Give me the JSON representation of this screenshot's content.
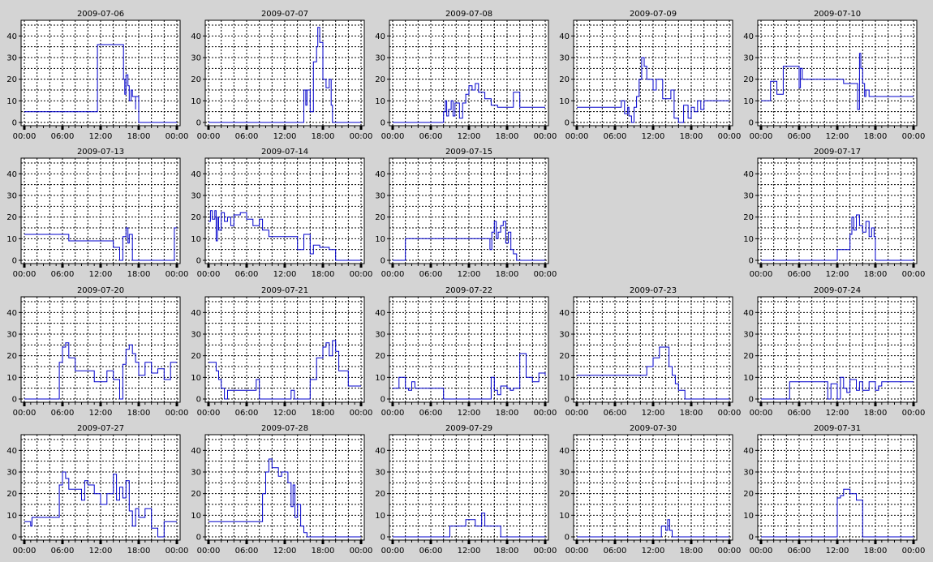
{
  "chart_data": [
    {
      "type": "line",
      "title": "2009-07-06",
      "ylim": [
        0,
        45
      ],
      "yticks": [
        0,
        10,
        20,
        30,
        40
      ],
      "xticks": [
        "00:00",
        "06:00",
        "12:00",
        "18:00",
        "00:00"
      ],
      "x": [
        0,
        11.5,
        11.5,
        15.5,
        15.6,
        15.8,
        16,
        16.3,
        16.5,
        16.8,
        17,
        17.5,
        17.5,
        18,
        24
      ],
      "values": [
        5,
        5,
        36,
        36,
        20,
        13,
        22,
        17,
        10,
        15,
        12,
        6,
        12,
        0,
        0
      ]
    },
    {
      "type": "line",
      "title": "2009-07-07",
      "ylim": [
        0,
        45
      ],
      "yticks": [
        0,
        10,
        20,
        30,
        40
      ],
      "xticks": [
        "00:00",
        "06:00",
        "12:00",
        "18:00",
        "00:00"
      ],
      "x": [
        0,
        14.8,
        15,
        15.3,
        15.5,
        16,
        16.5,
        17,
        17.2,
        17.5,
        18,
        18.5,
        19,
        19.3,
        19.5,
        24
      ],
      "values": [
        0,
        0,
        15,
        8,
        15,
        5,
        28,
        35,
        44,
        37,
        20,
        16,
        20,
        8,
        0,
        0
      ]
    },
    {
      "type": "line",
      "title": "2009-07-08",
      "ylim": [
        0,
        45
      ],
      "yticks": [
        0,
        10,
        20,
        30,
        40
      ],
      "xticks": [
        "00:00",
        "06:00",
        "12:00",
        "18:00",
        "00:00"
      ],
      "x": [
        0,
        7.8,
        8,
        8.3,
        8.5,
        8.8,
        9.2,
        9.5,
        9.8,
        10.5,
        11,
        11.5,
        12,
        12.5,
        13,
        13.5,
        14.5,
        15.5,
        16.5,
        18.5,
        19,
        20,
        24
      ],
      "values": [
        0,
        0,
        5,
        10,
        3,
        6,
        10,
        3,
        9,
        2,
        9,
        13,
        17,
        15,
        18,
        14,
        11,
        8,
        7,
        7,
        14,
        7,
        7
      ]
    },
    {
      "type": "line",
      "title": "2009-07-09",
      "ylim": [
        0,
        45
      ],
      "yticks": [
        0,
        10,
        20,
        30,
        40
      ],
      "xticks": [
        "00:00",
        "06:00",
        "12:00",
        "18:00",
        "00:00"
      ],
      "x": [
        0,
        6.5,
        7,
        7.5,
        8,
        8.2,
        8.6,
        9,
        9.4,
        9.8,
        10.2,
        10.6,
        11,
        12,
        12.5,
        13.5,
        14.8,
        15.3,
        16,
        16.8,
        17.5,
        18,
        18.5,
        19,
        19.5,
        20,
        24
      ],
      "values": [
        7,
        7,
        10,
        4,
        7,
        3,
        0,
        7,
        12,
        20,
        30,
        26,
        20,
        15,
        20,
        11,
        15,
        2,
        0,
        8,
        2,
        7,
        5,
        10,
        6,
        10,
        10
      ]
    },
    {
      "type": "line",
      "title": "2009-07-10",
      "ylim": [
        0,
        45
      ],
      "yticks": [
        0,
        10,
        20,
        30,
        40
      ],
      "xticks": [
        "00:00",
        "06:00",
        "12:00",
        "18:00",
        "00:00"
      ],
      "x": [
        0,
        1,
        1.5,
        2.5,
        3.5,
        6,
        6.2,
        6.5,
        7,
        13,
        15,
        15.2,
        15.5,
        15.7,
        16,
        16.3,
        16.5,
        17,
        24
      ],
      "values": [
        10,
        10,
        19,
        13,
        26,
        16,
        25,
        20,
        20,
        18,
        18,
        6,
        32,
        25,
        18,
        12,
        15,
        12,
        12
      ]
    },
    {
      "type": "line",
      "title": "2009-07-13",
      "ylim": [
        0,
        45
      ],
      "yticks": [
        0,
        10,
        20,
        30,
        40
      ],
      "xticks": [
        "00:00",
        "06:00",
        "12:00",
        "18:00",
        "00:00"
      ],
      "x": [
        0,
        6.5,
        7,
        12.5,
        14,
        15,
        15.5,
        16,
        16.3,
        16.5,
        17,
        23.5,
        23.6,
        24
      ],
      "values": [
        12,
        12,
        9,
        9,
        6,
        0,
        11,
        15,
        8,
        12,
        0,
        0,
        15,
        15
      ]
    },
    {
      "type": "line",
      "title": "2009-07-14",
      "ylim": [
        0,
        45
      ],
      "yticks": [
        0,
        10,
        20,
        30,
        40
      ],
      "xticks": [
        "00:00",
        "06:00",
        "12:00",
        "18:00",
        "00:00"
      ],
      "x": [
        0,
        0.3,
        0.6,
        1,
        1.2,
        1.4,
        1.6,
        2,
        2.5,
        3,
        3.5,
        4,
        5,
        6,
        7,
        8,
        8.5,
        9.5,
        10,
        13,
        14,
        15,
        16,
        16.5,
        17.5,
        19,
        20,
        24
      ],
      "values": [
        18,
        23,
        19,
        23,
        9,
        20,
        14,
        22,
        18,
        20,
        16,
        21,
        22,
        19,
        16,
        19,
        14,
        11,
        11,
        11,
        5,
        12,
        3,
        7,
        6,
        5,
        0,
        0
      ]
    },
    {
      "type": "line",
      "title": "2009-07-15",
      "ylim": [
        0,
        45
      ],
      "yticks": [
        0,
        10,
        20,
        30,
        40
      ],
      "xticks": [
        "00:00",
        "06:00",
        "12:00",
        "18:00",
        "00:00"
      ],
      "x": [
        0,
        1.5,
        2,
        15,
        15.3,
        15.6,
        16,
        16.3,
        16.6,
        17,
        17.4,
        17.8,
        18.2,
        18.6,
        19,
        19.5,
        24
      ],
      "values": [
        0,
        0,
        10,
        10,
        5,
        13,
        18,
        10,
        13,
        16,
        18,
        8,
        13,
        5,
        3,
        0,
        0
      ]
    },
    null,
    {
      "type": "line",
      "title": "2009-07-17",
      "ylim": [
        0,
        45
      ],
      "yticks": [
        0,
        10,
        20,
        30,
        40
      ],
      "xticks": [
        "00:00",
        "06:00",
        "12:00",
        "18:00",
        "00:00"
      ],
      "x": [
        0,
        12,
        14,
        14.3,
        14.6,
        15,
        15.5,
        16,
        16.5,
        17,
        17.4,
        17.8,
        18,
        24
      ],
      "values": [
        0,
        5,
        12,
        20,
        14,
        21,
        16,
        13,
        18,
        11,
        15,
        11,
        0,
        0
      ]
    },
    {
      "type": "line",
      "title": "2009-07-20",
      "ylim": [
        0,
        45
      ],
      "yticks": [
        0,
        10,
        20,
        30,
        40
      ],
      "xticks": [
        "00:00",
        "06:00",
        "12:00",
        "18:00",
        "00:00"
      ],
      "x": [
        0,
        5,
        5.5,
        6,
        6.5,
        7,
        8,
        9,
        10,
        11,
        12,
        13,
        14,
        15,
        15.5,
        16,
        16.5,
        17,
        17.5,
        18,
        19,
        20,
        21,
        22,
        23,
        24
      ],
      "values": [
        0,
        0,
        17,
        24,
        26,
        19,
        13,
        13,
        13,
        8,
        8,
        13,
        9,
        0,
        16,
        23,
        25,
        21,
        17,
        11,
        17,
        12,
        14,
        9,
        17,
        17
      ]
    },
    {
      "type": "line",
      "title": "2009-07-21",
      "ylim": [
        0,
        45
      ],
      "yticks": [
        0,
        10,
        20,
        30,
        40
      ],
      "xticks": [
        "00:00",
        "06:00",
        "12:00",
        "18:00",
        "00:00"
      ],
      "x": [
        0,
        1.2,
        1.6,
        2,
        2.5,
        3,
        4,
        5,
        7,
        7.5,
        8,
        10,
        13,
        13.5,
        14,
        16,
        17,
        18,
        18.5,
        19,
        19.5,
        20,
        20.5,
        21,
        22,
        23,
        24
      ],
      "values": [
        17,
        13,
        9,
        5,
        0,
        4,
        4,
        4,
        4,
        9,
        0,
        0,
        4,
        0,
        0,
        9,
        19,
        24,
        26,
        20,
        27,
        22,
        13,
        13,
        6,
        6,
        6
      ]
    },
    {
      "type": "line",
      "title": "2009-07-22",
      "ylim": [
        0,
        45
      ],
      "yticks": [
        0,
        10,
        20,
        30,
        40
      ],
      "xticks": [
        "00:00",
        "06:00",
        "12:00",
        "18:00",
        "00:00"
      ],
      "x": [
        0,
        1,
        2,
        2.5,
        3,
        3.5,
        5,
        7,
        8,
        9,
        15,
        15.5,
        16,
        16.5,
        17,
        18,
        18.5,
        19,
        20,
        21,
        22,
        23,
        24
      ],
      "values": [
        5,
        10,
        5,
        4,
        8,
        5,
        5,
        5,
        0,
        0,
        0,
        10,
        4,
        2,
        6,
        5,
        4,
        5,
        21,
        10,
        8,
        12,
        11
      ]
    },
    {
      "type": "line",
      "title": "2009-07-23",
      "ylim": [
        0,
        45
      ],
      "yticks": [
        0,
        10,
        20,
        30,
        40
      ],
      "xticks": [
        "00:00",
        "06:00",
        "12:00",
        "18:00",
        "00:00"
      ],
      "x": [
        0,
        9.5,
        10,
        11,
        12,
        13,
        14,
        14.5,
        15,
        15.5,
        16,
        17,
        24
      ],
      "values": [
        11,
        11,
        11,
        15,
        19,
        24,
        24,
        15,
        11,
        7,
        4,
        0,
        0
      ]
    },
    {
      "type": "line",
      "title": "2009-07-24",
      "ylim": [
        0,
        45
      ],
      "yticks": [
        0,
        10,
        20,
        30,
        40
      ],
      "xticks": [
        "00:00",
        "06:00",
        "12:00",
        "18:00",
        "00:00"
      ],
      "x": [
        0,
        4,
        4.5,
        10,
        10.5,
        11,
        12,
        12.5,
        13,
        13.5,
        14,
        15,
        15.5,
        16,
        17,
        18,
        18.5,
        19,
        24
      ],
      "values": [
        0,
        0,
        8,
        8,
        0,
        7,
        0,
        10,
        5,
        3,
        9,
        4,
        8,
        4,
        8,
        4,
        6,
        8,
        8
      ]
    },
    {
      "type": "line",
      "title": "2009-07-27",
      "ylim": [
        0,
        45
      ],
      "yticks": [
        0,
        10,
        20,
        30,
        40
      ],
      "xticks": [
        "00:00",
        "06:00",
        "12:00",
        "18:00",
        "00:00"
      ],
      "x": [
        0,
        1,
        1.2,
        5,
        5.5,
        6,
        6.5,
        7,
        8,
        9,
        9.5,
        10,
        11,
        12,
        13,
        14,
        14.5,
        15,
        15.5,
        16,
        16.5,
        17,
        17.5,
        18,
        19,
        20,
        21,
        22,
        24
      ],
      "values": [
        7,
        5,
        9,
        9,
        24,
        30,
        27,
        22,
        22,
        17,
        26,
        24,
        20,
        15,
        20,
        29,
        17,
        23,
        18,
        26,
        12,
        5,
        13,
        9,
        13,
        4,
        0,
        7,
        7
      ]
    },
    {
      "type": "line",
      "title": "2009-07-28",
      "ylim": [
        0,
        45
      ],
      "yticks": [
        0,
        10,
        20,
        30,
        40
      ],
      "xticks": [
        "00:00",
        "06:00",
        "12:00",
        "18:00",
        "00:00"
      ],
      "x": [
        0,
        8,
        8.5,
        9,
        9.5,
        10,
        11,
        11.5,
        12,
        12.5,
        13,
        13.3,
        13.6,
        14,
        14.5,
        15,
        15.5,
        24
      ],
      "values": [
        7,
        7,
        20,
        30,
        36,
        32,
        28,
        30,
        30,
        25,
        14,
        24,
        9,
        15,
        5,
        2,
        0,
        0
      ]
    },
    {
      "type": "line",
      "title": "2009-07-29",
      "ylim": [
        0,
        45
      ],
      "yticks": [
        0,
        10,
        20,
        30,
        40
      ],
      "xticks": [
        "00:00",
        "06:00",
        "12:00",
        "18:00",
        "00:00"
      ],
      "x": [
        0,
        8.5,
        9,
        10,
        11,
        11.5,
        12,
        13,
        14,
        14.5,
        15,
        16,
        17,
        24
      ],
      "values": [
        0,
        0,
        5,
        5,
        5,
        8,
        8,
        5,
        11,
        5,
        5,
        5,
        0,
        0
      ]
    },
    {
      "type": "line",
      "title": "2009-07-30",
      "ylim": [
        0,
        45
      ],
      "yticks": [
        0,
        10,
        20,
        30,
        40
      ],
      "xticks": [
        "00:00",
        "06:00",
        "12:00",
        "18:00",
        "00:00"
      ],
      "x": [
        0,
        13,
        13.3,
        13.7,
        14,
        14.3,
        14.6,
        15,
        24
      ],
      "values": [
        0,
        0,
        5,
        5,
        3,
        8,
        3,
        0,
        0
      ]
    },
    {
      "type": "line",
      "title": "2009-07-31",
      "ylim": [
        0,
        45
      ],
      "yticks": [
        0,
        10,
        20,
        30,
        40
      ],
      "xticks": [
        "00:00",
        "06:00",
        "12:00",
        "18:00",
        "00:00"
      ],
      "x": [
        0,
        11.5,
        12,
        12.5,
        13,
        14,
        15,
        16,
        24
      ],
      "values": [
        0,
        0,
        18,
        19,
        22,
        20,
        17,
        0,
        0
      ]
    }
  ]
}
